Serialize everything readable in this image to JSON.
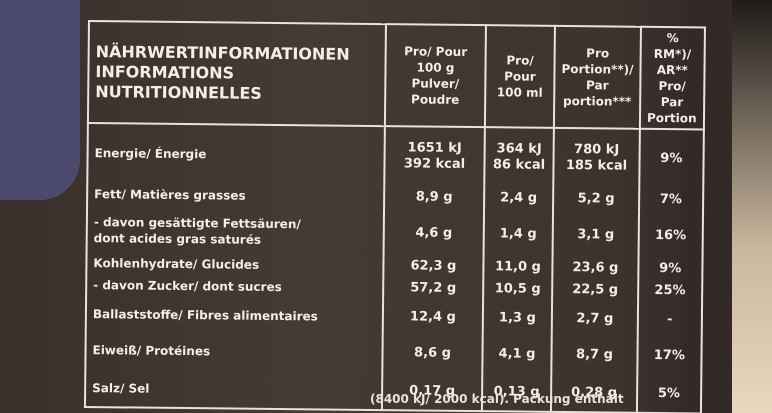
{
  "table": {
    "header": {
      "title": [
        "NÄHRWERTINFORMATIONEN",
        "INFORMATIONS NUTRITIONNELLES"
      ],
      "columns": [
        [
          "Pro/ Pour",
          "100 g",
          "Pulver/ Poudre"
        ],
        [
          "Pro/ Pour",
          "100 ml"
        ],
        [
          "Pro Portion**)/",
          "Par portion***"
        ],
        [
          "% RM*)/",
          "AR** Pro/",
          "Par Portion"
        ]
      ]
    },
    "rows": [
      {
        "label": [
          "Energie/ Énergie"
        ],
        "cells": [
          [
            "1651 kJ",
            "392 kcal"
          ],
          [
            "364 kJ",
            "86 kcal"
          ],
          [
            "780 kJ",
            "185 kcal"
          ],
          [
            "9%"
          ]
        ]
      },
      {
        "label": [
          "Fett/ Matières grasses"
        ],
        "cells": [
          [
            "8,9 g"
          ],
          [
            "2,4 g"
          ],
          [
            "5,2 g"
          ],
          [
            "7%"
          ]
        ]
      },
      {
        "label": [
          "- davon gesättigte Fettsäuren/",
          "dont acides gras saturés"
        ],
        "cells": [
          [
            "4,6 g"
          ],
          [
            "1,4 g"
          ],
          [
            "3,1 g"
          ],
          [
            "16%"
          ]
        ]
      },
      {
        "label": [
          "Kohlenhydrate/ Glucides"
        ],
        "cells": [
          [
            "62,3 g"
          ],
          [
            "11,0 g"
          ],
          [
            "23,6 g"
          ],
          [
            "9%"
          ]
        ]
      },
      {
        "label": [
          "- davon Zucker/ dont sucres"
        ],
        "cells": [
          [
            "57,2 g"
          ],
          [
            "10,5 g"
          ],
          [
            "22,5 g"
          ],
          [
            "25%"
          ]
        ]
      },
      {
        "label": [
          "Ballaststoffe/ Fibres alimentaires"
        ],
        "cells": [
          [
            "12,4 g"
          ],
          [
            "1,3 g"
          ],
          [
            "2,7 g"
          ],
          [
            "-"
          ]
        ]
      },
      {
        "label": [
          "Eiweiß/ Protéines"
        ],
        "cells": [
          [
            "8,6 g"
          ],
          [
            "4,1 g"
          ],
          [
            "8,7 g"
          ],
          [
            "17%"
          ]
        ]
      },
      {
        "label": [
          "Salz/ Sel"
        ],
        "cells": [
          [
            "0,17 g"
          ],
          [
            "0,13 g"
          ],
          [
            "0,28 g"
          ],
          [
            "5%"
          ]
        ]
      }
    ]
  },
  "footnote": "(8400 kJ/ 2000 kcal). Packung enthält"
}
